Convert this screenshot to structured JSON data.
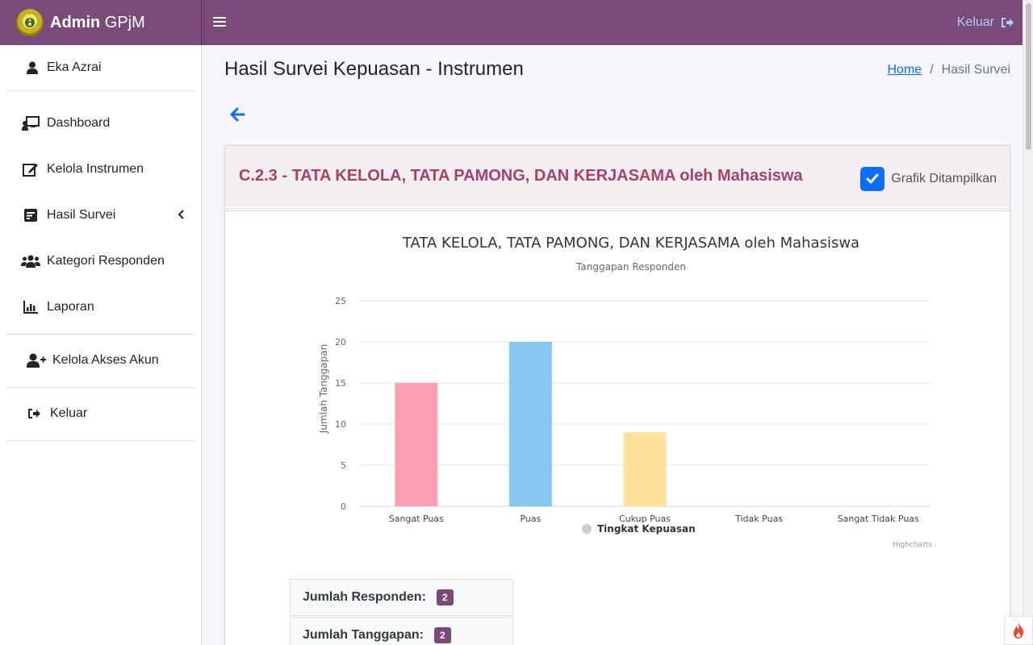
{
  "brand": {
    "bold": "Admin",
    "light": "GPjM",
    "logo_icon": "university-seal-icon"
  },
  "topbar": {
    "logout_label": "Keluar"
  },
  "sidebar": {
    "user_name": "Eka Azrai",
    "items": [
      {
        "label": "Dashboard",
        "icon": "chalkboard-teacher-icon"
      },
      {
        "label": "Kelola Instrumen",
        "icon": "edit-icon"
      },
      {
        "label": "Hasil Survei",
        "icon": "poll-icon"
      },
      {
        "label": "Kategori Responden",
        "icon": "users-icon"
      },
      {
        "label": "Laporan",
        "icon": "chart-line-icon"
      },
      {
        "label": "Kelola Akses Akun",
        "icon": "user-plus-icon"
      },
      {
        "label": "Keluar",
        "icon": "sign-out-icon"
      }
    ]
  },
  "page": {
    "title": "Hasil Survei Kepuasan - Instrumen",
    "breadcrumb_home": "Home",
    "breadcrumb_current": "Hasil Survei"
  },
  "card": {
    "title": "C.2.3 - TATA KELOLA, TATA PAMONG, DAN KERJASAMA oleh Mahasiswa",
    "checkbox_label": "Grafik Ditampilkan",
    "checkbox_checked": true
  },
  "stats": {
    "responden_label": "Jumlah Responden:",
    "responden_value": "2",
    "tanggapan_label": "Jumlah Tanggapan:",
    "tanggapan_value": "2"
  },
  "chart_data": {
    "type": "bar",
    "title": "TATA KELOLA, TATA PAMONG, DAN KERJASAMA oleh Mahasiswa",
    "subtitle": "Tanggapan Responden",
    "xlabel": "",
    "ylabel": "Jumlah Tanggapan",
    "categories": [
      "Sangat Puas",
      "Puas",
      "Cukup Puas",
      "Tidak Puas",
      "Sangat Tidak Puas"
    ],
    "values": [
      15,
      20,
      9,
      0,
      0
    ],
    "colors": [
      "#ff9fb3",
      "#86c6f1",
      "#ffe19b",
      "#a5dfdf",
      "#c9b3fb"
    ],
    "ylim": [
      0,
      25
    ],
    "yticks": [
      0,
      5,
      10,
      15,
      20,
      25
    ],
    "grid": true,
    "legend": "Tingkat Kepuasan",
    "legend_position": "bottom-center",
    "credits": "Highcharts"
  }
}
